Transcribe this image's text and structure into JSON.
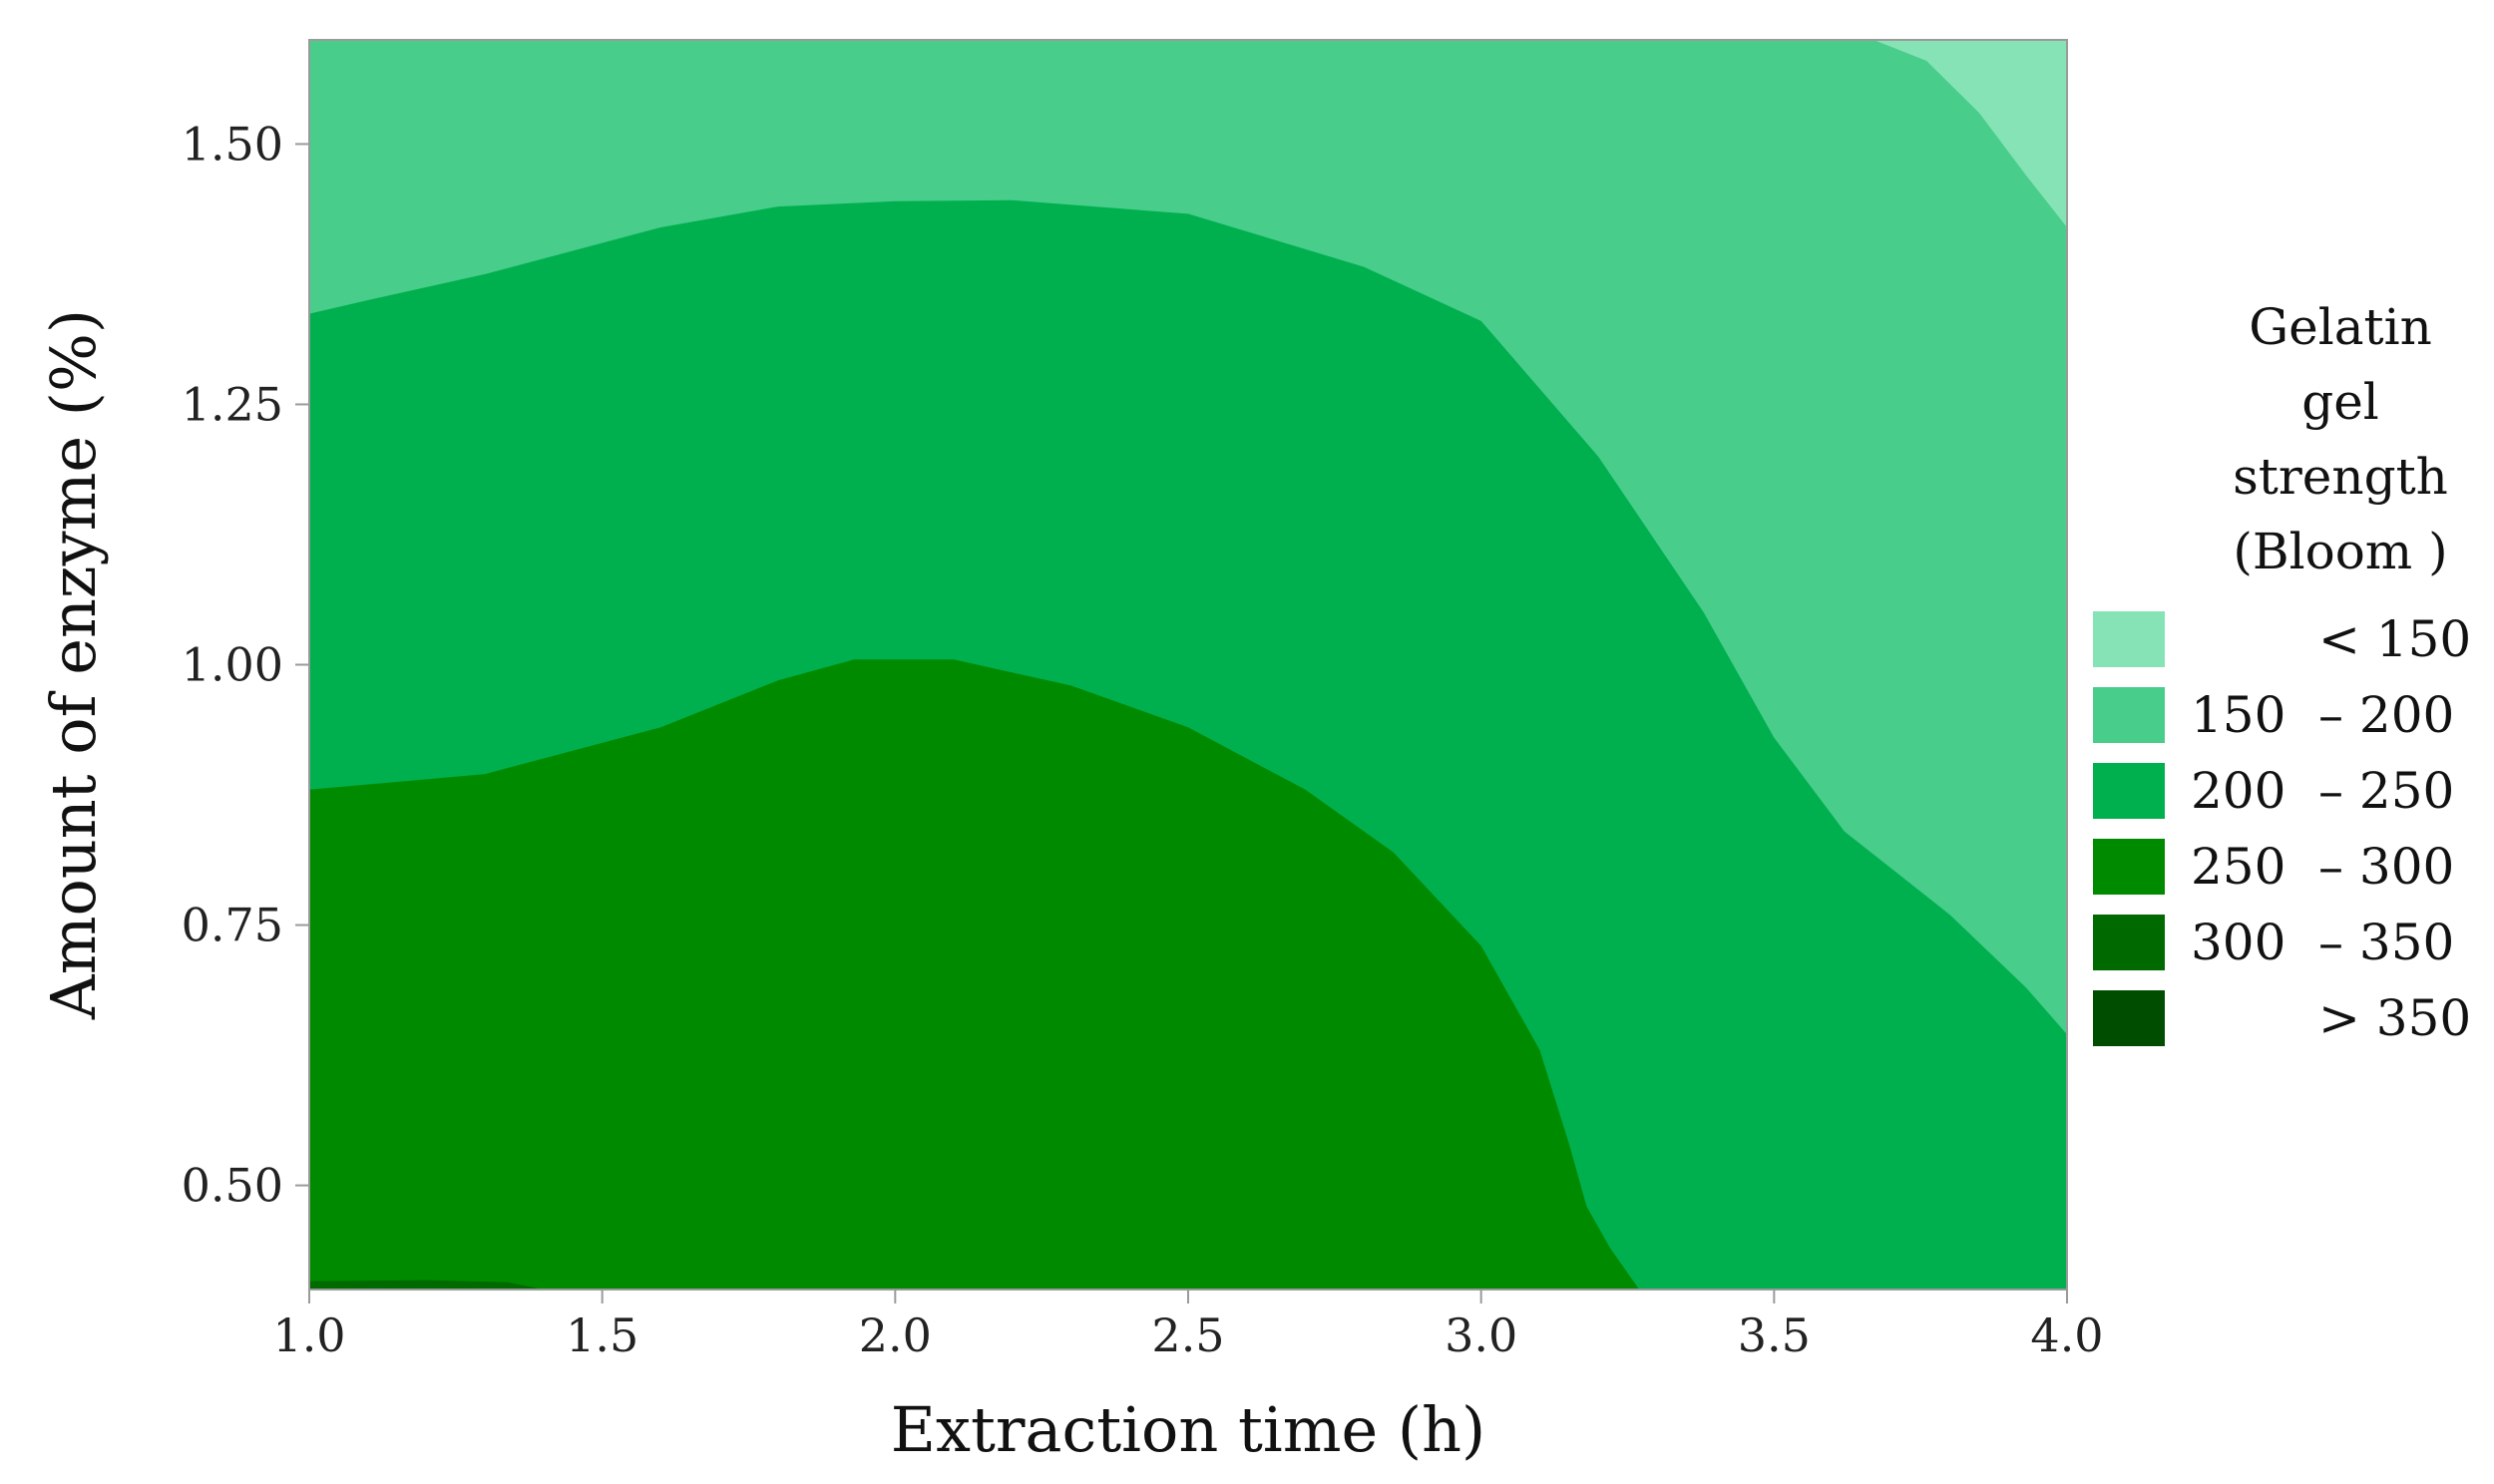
{
  "chart_data": {
    "type": "contour",
    "xlabel": "Extraction time (h)",
    "ylabel": "Amount of enzyme (%)",
    "xlim": [
      1.0,
      4.0
    ],
    "ylim": [
      0.4,
      1.6
    ],
    "x_ticks": [
      "1.0",
      "1.5",
      "2.0",
      "2.5",
      "3.0",
      "3.5",
      "4.0"
    ],
    "y_ticks": [
      "0.50",
      "0.75",
      "1.00",
      "1.25",
      "1.50"
    ],
    "legend": {
      "title_lines": [
        "Gelatin",
        "gel",
        "strength",
        "(Bloom )"
      ],
      "placement": "right",
      "items": [
        {
          "lo": "",
          "hi": "< 150",
          "color": "#86E3B5"
        },
        {
          "lo": "150",
          "hi": "– 200",
          "color": "#48CD8B"
        },
        {
          "lo": "200",
          "hi": "– 250",
          "color": "#00B04F"
        },
        {
          "lo": "250",
          "hi": "– 300",
          "color": "#008A00"
        },
        {
          "lo": "300",
          "hi": "– 350",
          "color": "#006A00"
        },
        {
          "lo": "",
          "hi": "> 350",
          "color": "#004D00"
        }
      ]
    },
    "regions": [
      {
        "level": "150 – 200",
        "color": "#48CD8B",
        "boundary": [
          [
            1.0,
            0.4
          ],
          [
            4.0,
            0.4
          ],
          [
            4.0,
            1.6
          ],
          [
            1.0,
            1.6
          ]
        ]
      },
      {
        "level": "< 150",
        "color": "#86E3B5",
        "boundary": [
          [
            3.67,
            1.6
          ],
          [
            4.0,
            1.6
          ],
          [
            4.0,
            1.42
          ],
          [
            3.93,
            1.47
          ],
          [
            3.85,
            1.53
          ],
          [
            3.76,
            1.58
          ]
        ]
      },
      {
        "level": "200 – 250",
        "color": "#00B04F",
        "boundary": [
          [
            1.0,
            0.4
          ],
          [
            1.0,
            1.337
          ],
          [
            1.1,
            1.35
          ],
          [
            1.3,
            1.375
          ],
          [
            1.6,
            1.42
          ],
          [
            1.8,
            1.44
          ],
          [
            2.0,
            1.445
          ],
          [
            2.2,
            1.446
          ],
          [
            2.5,
            1.433
          ],
          [
            2.8,
            1.382
          ],
          [
            3.0,
            1.33
          ],
          [
            3.2,
            1.2
          ],
          [
            3.38,
            1.05
          ],
          [
            3.5,
            0.93
          ],
          [
            3.62,
            0.84
          ],
          [
            3.8,
            0.76
          ],
          [
            3.93,
            0.69
          ],
          [
            4.0,
            0.645
          ],
          [
            4.0,
            0.4
          ]
        ]
      },
      {
        "level": "250 – 300",
        "color": "#008A00",
        "boundary": [
          [
            1.0,
            0.4
          ],
          [
            1.0,
            0.88
          ],
          [
            1.3,
            0.895
          ],
          [
            1.6,
            0.94
          ],
          [
            1.8,
            0.985
          ],
          [
            1.93,
            1.005
          ],
          [
            2.1,
            1.005
          ],
          [
            2.3,
            0.98
          ],
          [
            2.5,
            0.94
          ],
          [
            2.7,
            0.88
          ],
          [
            2.85,
            0.82
          ],
          [
            3.0,
            0.73
          ],
          [
            3.1,
            0.63
          ],
          [
            3.15,
            0.54
          ],
          [
            3.18,
            0.48
          ],
          [
            3.22,
            0.44
          ],
          [
            3.27,
            0.4
          ]
        ]
      },
      {
        "level": "300 – 350",
        "color": "#006A00",
        "boundary": [
          [
            1.0,
            0.4
          ],
          [
            1.0,
            0.408
          ],
          [
            1.2,
            0.409
          ],
          [
            1.34,
            0.407
          ],
          [
            1.4,
            0.4
          ]
        ]
      }
    ]
  }
}
